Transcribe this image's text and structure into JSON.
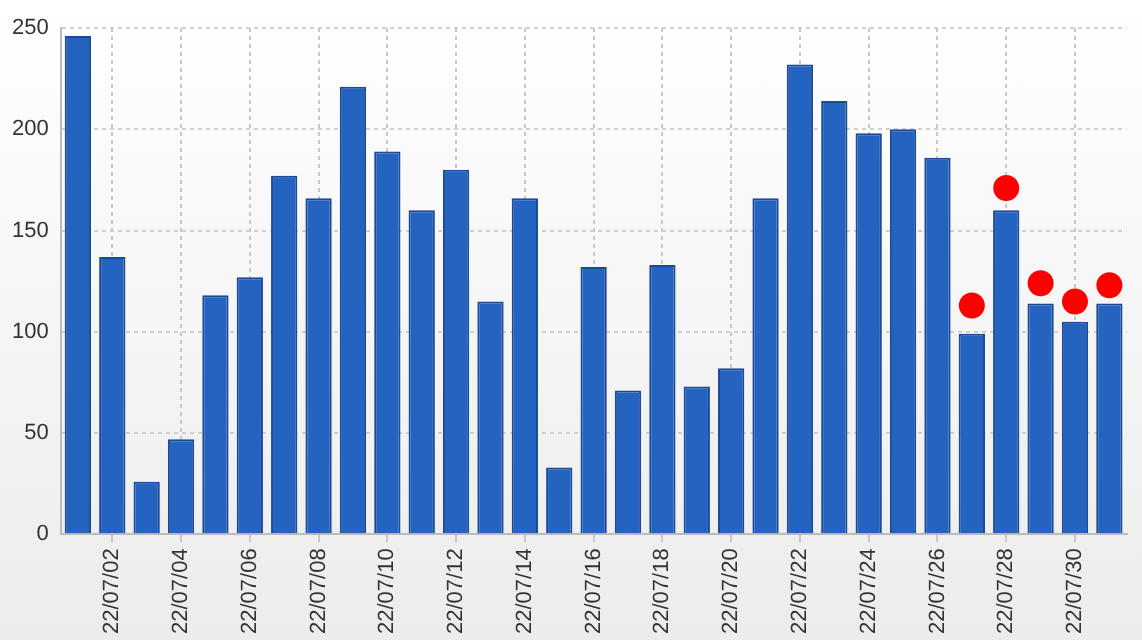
{
  "chart_data": {
    "type": "bar",
    "categories": [
      null,
      "22/07/02",
      null,
      "22/07/04",
      null,
      "22/07/06",
      null,
      "22/07/08",
      null,
      "22/07/10",
      null,
      "22/07/12",
      null,
      "22/07/14",
      null,
      "22/07/16",
      null,
      "22/07/18",
      null,
      "22/07/20",
      null,
      "22/07/22",
      null,
      "22/07/24",
      null,
      "22/07/26",
      null,
      "22/07/28",
      null,
      "22/07/30",
      null
    ],
    "series": [
      {
        "color": "#2563c0",
        "values": [
          246,
          137,
          26,
          47,
          118,
          127,
          177,
          166,
          221,
          189,
          160,
          180,
          115,
          166,
          33,
          132,
          71,
          133,
          73,
          82,
          166,
          232,
          214,
          198,
          200,
          186,
          99,
          160,
          114,
          105,
          114
        ]
      },
      {
        "type": "scatter",
        "color": "#ff0000",
        "values": [
          null,
          null,
          null,
          null,
          null,
          null,
          null,
          null,
          null,
          null,
          null,
          null,
          null,
          null,
          null,
          null,
          null,
          null,
          null,
          null,
          null,
          null,
          null,
          null,
          null,
          null,
          113,
          171,
          124,
          115,
          123
        ]
      }
    ],
    "ylim": [
      0,
      250
    ],
    "yticks": [
      0,
      50,
      100,
      150,
      200,
      250
    ],
    "grid": true,
    "marker": "circle"
  }
}
